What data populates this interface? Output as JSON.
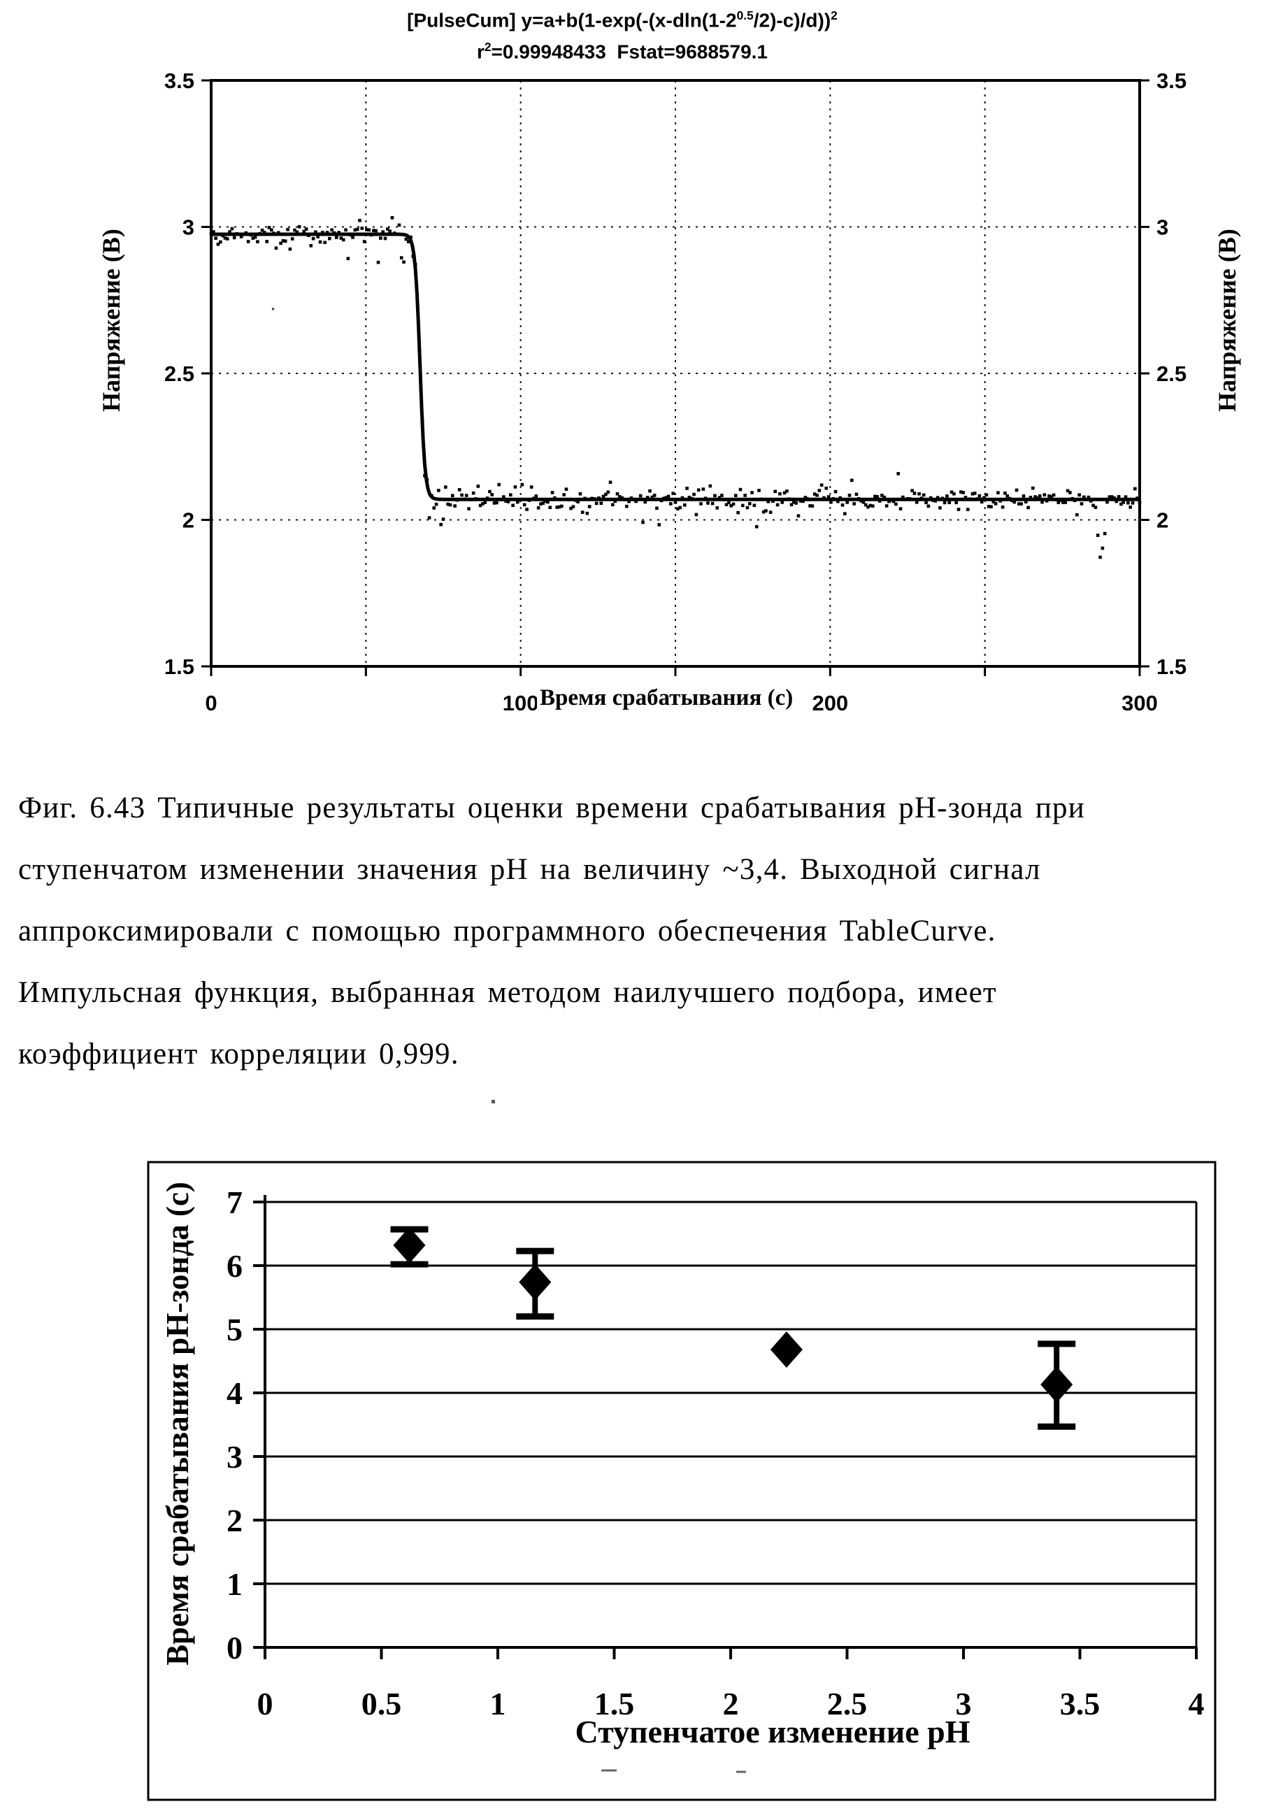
{
  "page": {
    "background": "#ffffff",
    "ink": "#000000"
  },
  "figure1": {
    "title_pre": "[PulseCum] y=a+b(1-exp(-(x-dln(1-2",
    "title_sup1": "0.5",
    "title_mid": "/2)-c)/d))",
    "title_sup2": "2",
    "stats_r": "r",
    "stats_sup": "2",
    "stats_rest": "=0.99948433  Fstat=9688579.1",
    "ylabel_left": "Напряжение (В)",
    "ylabel_right": "Напряжение (В)",
    "xlabel": "Время срабатывания (с)"
  },
  "caption": {
    "lines": [
      "Фиг. 6.43 Типичные результаты оценки времени срабатывания pH-зонда при",
      "ступенчатом изменении значения pH на величину ~3,4. Выходной сигнал",
      "аппроксимировали с помощью программного обеспечения TableCurve.",
      "Импульсная функция, выбранная методом наилучшего подбора, имеет",
      "коэффициент корреляции 0,999."
    ]
  },
  "figure2": {
    "ylabel": "Время срабатывания pH-зонда (с)",
    "xlabel": "Ступенчатое изменение pH"
  },
  "chart_data": [
    {
      "type": "scatter",
      "title": "[PulseCum] y=a+b(1-exp(-(x-dln(1-2^0.5/2)-c)/d))^2",
      "subtitle": "r^2=0.99948433  Fstat=9688579.1",
      "xlabel": "Время срабатывания (с)",
      "ylabel": "Напряжение (В)",
      "xlim": [
        0,
        300
      ],
      "ylim": [
        1.5,
        3.5
      ],
      "xticks": [
        0,
        100,
        200,
        300
      ],
      "xtick_labels": [
        "0",
        "100",
        "200",
        "300"
      ],
      "yticks": [
        1.5,
        2,
        2.5,
        3,
        3.5
      ],
      "ytick_labels": [
        "1.5",
        "2",
        "2.5",
        "3",
        "3.5"
      ],
      "xgrid": [
        50,
        100,
        150,
        200,
        250
      ],
      "ygrid": [
        2,
        2.5,
        3
      ],
      "grid": true,
      "series": {
        "name": "pH-probe voltage vs time",
        "baseline_v": 2.97,
        "step_v": 2.07,
        "step_time": 67.5,
        "step_scale": 0.8,
        "noise_sd": 0.018,
        "dt": 0.75,
        "anomaly_x": 287.5,
        "anomaly_depth": 0.2,
        "stray_points": [
          [
            20,
            2.72
          ]
        ]
      },
      "fit": {
        "description": "best-fit pulse step",
        "pre": 2.975,
        "post": 2.07,
        "center": 67.5,
        "scale": 0.8
      }
    },
    {
      "type": "scatter",
      "title": "",
      "xlabel": "Ступенчатое изменение pH",
      "ylabel": "Время срабатывания pH-зонда (с)",
      "xlim": [
        0,
        4
      ],
      "ylim": [
        0,
        7
      ],
      "xticks": [
        0,
        0.5,
        1,
        1.5,
        2,
        2.5,
        3,
        3.5,
        4
      ],
      "xtick_labels": [
        "0",
        "0.5",
        "1",
        "1.5",
        "2",
        "2.5",
        "3",
        "3.5",
        "4"
      ],
      "yticks": [
        0,
        1,
        2,
        3,
        4,
        5,
        6,
        7
      ],
      "ytick_labels": [
        "0",
        "1",
        "2",
        "3",
        "4",
        "5",
        "6",
        "7"
      ],
      "grid": true,
      "points": [
        {
          "x": 0.62,
          "y": 6.32,
          "err_up": 0.25,
          "err_down": 0.3
        },
        {
          "x": 1.16,
          "y": 5.74,
          "err_up": 0.49,
          "err_down": 0.54
        },
        {
          "x": 2.24,
          "y": 4.68,
          "err_up": 0,
          "err_down": 0
        },
        {
          "x": 3.4,
          "y": 4.13,
          "err_up": 0.64,
          "err_down": 0.66
        }
      ]
    }
  ]
}
